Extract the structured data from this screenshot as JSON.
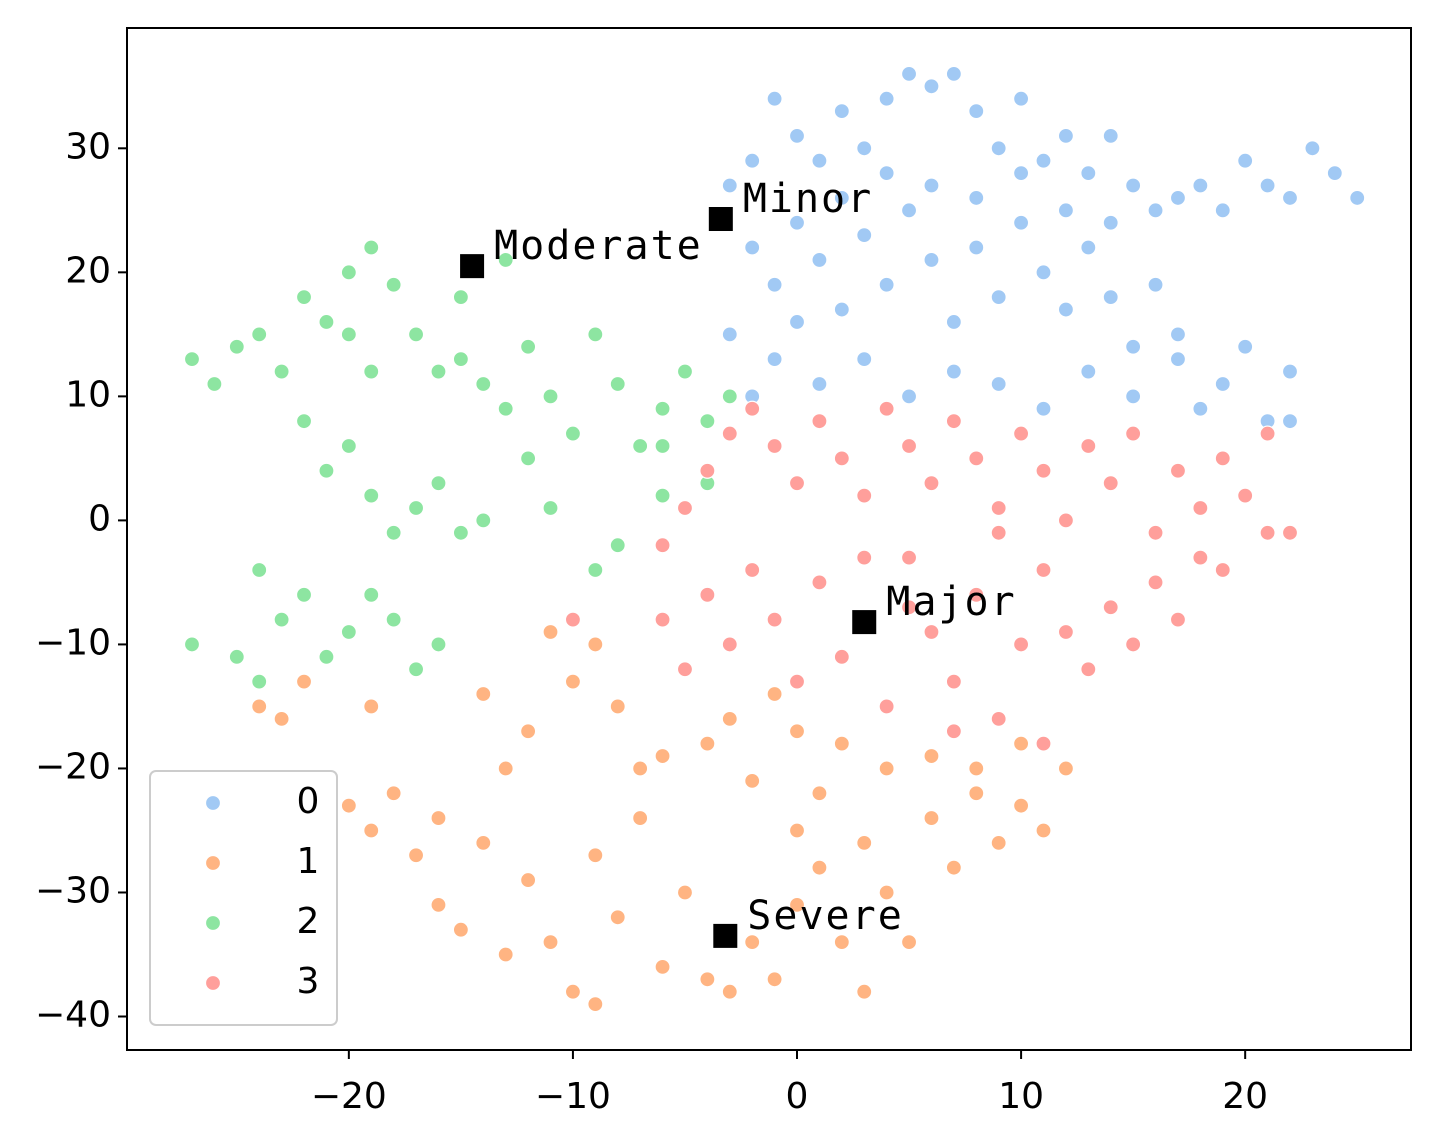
{
  "chart_data": {
    "type": "scatter",
    "xlim": [
      -29.9,
      27.4
    ],
    "ylim": [
      -42.7,
      39.7
    ],
    "xticks": [
      {
        "value": -20,
        "label": "−20"
      },
      {
        "value": -10,
        "label": "−10"
      },
      0,
      10,
      20
    ],
    "yticks": [
      30,
      20,
      10,
      0,
      {
        "value": -10,
        "label": "−10"
      },
      {
        "value": -20,
        "label": "−20"
      },
      {
        "value": -30,
        "label": "−30"
      },
      {
        "value": -40,
        "label": "−40"
      }
    ],
    "legend": "lower left",
    "series": [
      {
        "name": "0",
        "color": "#a1c9f4",
        "x": [
          -3,
          -2,
          -1,
          0,
          1,
          2,
          3,
          4,
          5,
          6,
          7,
          8,
          9,
          10,
          11,
          12,
          13,
          14,
          15,
          16,
          17,
          18,
          19,
          20,
          21,
          22,
          23,
          24,
          25,
          -2,
          -1,
          0,
          1,
          2,
          3,
          4,
          5,
          6,
          7,
          8,
          9,
          10,
          11,
          12,
          13,
          14,
          15,
          16,
          17,
          -3,
          -1,
          1,
          3,
          5,
          7,
          9,
          11,
          13,
          15,
          17,
          19,
          21,
          22,
          20,
          18,
          6,
          8,
          10,
          4,
          2,
          12,
          14,
          -2,
          0,
          22
        ],
        "y": [
          27,
          29,
          34,
          31,
          29,
          33,
          30,
          34,
          36,
          35,
          36,
          33,
          30,
          34,
          29,
          31,
          28,
          31,
          27,
          25,
          26,
          27,
          25,
          29,
          27,
          26,
          30,
          28,
          26,
          22,
          19,
          24,
          21,
          17,
          23,
          19,
          25,
          21,
          16,
          22,
          18,
          24,
          20,
          17,
          22,
          18,
          14,
          19,
          15,
          15,
          13,
          11,
          13,
          10,
          12,
          11,
          9,
          12,
          10,
          13,
          11,
          8,
          12,
          14,
          9,
          27,
          26,
          28,
          28,
          26,
          25,
          24,
          10,
          16,
          8
        ]
      },
      {
        "name": "1",
        "color": "#ffb482",
        "x": [
          -20,
          -19,
          -18,
          -17,
          -16,
          -15,
          -14,
          -13,
          -12,
          -11,
          -10,
          -9,
          -8,
          -7,
          -6,
          -5,
          -4,
          -3,
          -2,
          -1,
          0,
          1,
          2,
          3,
          4,
          5,
          6,
          7,
          8,
          9,
          10,
          11,
          12,
          -14,
          -12,
          -10,
          -9,
          -8,
          -6,
          -5,
          -4,
          -3,
          -2,
          -1,
          0,
          1,
          2,
          4,
          6,
          8,
          10,
          -22,
          -24,
          -23,
          -19,
          -11,
          -7,
          -9,
          -13,
          -16,
          0,
          3
        ],
        "y": [
          -23,
          -25,
          -22,
          -27,
          -31,
          -33,
          -26,
          -20,
          -29,
          -34,
          -38,
          -39,
          -32,
          -24,
          -36,
          -30,
          -37,
          -38,
          -34,
          -37,
          -31,
          -28,
          -34,
          -26,
          -30,
          -34,
          -24,
          -28,
          -22,
          -26,
          -23,
          -25,
          -20,
          -14,
          -17,
          -13,
          -10,
          -15,
          -19,
          -12,
          -18,
          -16,
          -21,
          -14,
          -17,
          -22,
          -18,
          -20,
          -19,
          -20,
          -18,
          -13,
          -15,
          -16,
          -15,
          -9,
          -20,
          -27,
          -35,
          -24,
          -25,
          -38
        ]
      },
      {
        "name": "2",
        "color": "#8de5a1",
        "x": [
          -27,
          -26,
          -25,
          -24,
          -23,
          -22,
          -21,
          -20,
          -19,
          -18,
          -17,
          -16,
          -15,
          -14,
          -13,
          -12,
          -11,
          -10,
          -9,
          -8,
          -7,
          -6,
          -5,
          -4,
          -3,
          -22,
          -21,
          -20,
          -19,
          -18,
          -17,
          -16,
          -15,
          -14,
          -11,
          -8,
          -9,
          -24,
          -23,
          -22,
          -21,
          -20,
          -19,
          -18,
          -17,
          -16,
          -25,
          -27,
          -24,
          -6,
          -4,
          -6,
          -13,
          -15,
          -19,
          -20,
          -12
        ],
        "y": [
          13,
          11,
          14,
          15,
          12,
          18,
          16,
          20,
          22,
          19,
          15,
          12,
          13,
          11,
          9,
          14,
          10,
          7,
          15,
          11,
          6,
          9,
          12,
          8,
          10,
          8,
          4,
          6,
          2,
          -1,
          1,
          3,
          -1,
          0,
          1,
          -2,
          -4,
          -4,
          -8,
          -6,
          -11,
          -9,
          -6,
          -8,
          -12,
          -10,
          -11,
          -10,
          -13,
          6,
          3,
          2,
          21,
          18,
          12,
          15,
          5
        ]
      },
      {
        "name": "3",
        "color": "#ff9f9b",
        "x": [
          -6,
          -5,
          -4,
          -3,
          -2,
          -1,
          0,
          1,
          2,
          3,
          4,
          5,
          6,
          7,
          8,
          9,
          10,
          11,
          12,
          13,
          14,
          15,
          16,
          17,
          18,
          19,
          20,
          21,
          22,
          21,
          -6,
          -5,
          -4,
          -3,
          -2,
          -1,
          0,
          1,
          2,
          4,
          5,
          6,
          7,
          8,
          9,
          10,
          11,
          12,
          13,
          14,
          15,
          16,
          17,
          18,
          19,
          7,
          11,
          -10,
          3,
          5,
          9
        ],
        "y": [
          -2,
          1,
          4,
          7,
          9,
          6,
          3,
          8,
          5,
          2,
          9,
          6,
          3,
          8,
          5,
          1,
          7,
          4,
          0,
          6,
          3,
          7,
          -1,
          4,
          1,
          5,
          2,
          -1,
          -1,
          7,
          -8,
          -12,
          -6,
          -10,
          -4,
          -8,
          -13,
          -5,
          -11,
          -15,
          -3,
          -9,
          -13,
          -6,
          -16,
          -10,
          -4,
          -9,
          -12,
          -7,
          -10,
          -5,
          -8,
          -3,
          -4,
          -17,
          -18,
          -8,
          -3,
          -7,
          -1
        ]
      }
    ],
    "annotations": [
      {
        "label": "Minor",
        "x": -3.4,
        "y": 24.3
      },
      {
        "label": "Moderate",
        "x": -14.5,
        "y": 20.5
      },
      {
        "label": "Major",
        "x": 3,
        "y": -8.2
      },
      {
        "label": "Severe",
        "x": -3.2,
        "y": -33.5
      }
    ]
  }
}
